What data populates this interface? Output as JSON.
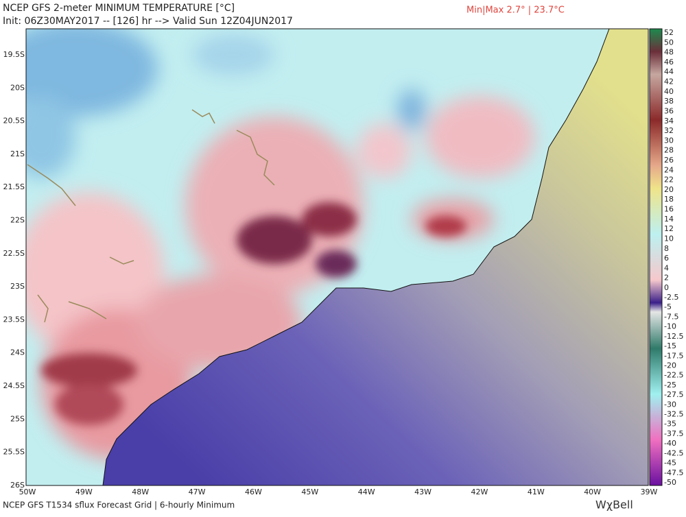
{
  "header": {
    "title": "NCEP GFS 2-meter MINIMUM TEMPERATURE [°C]",
    "init": "Init: 06Z30MAY2017 -- [126] hr --> Valid Sun 12Z04JUN2017",
    "minmax": "Min|Max 2.7° | 23.7°C"
  },
  "map": {
    "lat_labels": [
      "19.5S",
      "20S",
      "20.5S",
      "21S",
      "21.5S",
      "22S",
      "22.5S",
      "23S",
      "23.5S",
      "24S",
      "24.5S",
      "25S",
      "25.5S",
      "26S"
    ],
    "lon_labels": [
      "50W",
      "49W",
      "48W",
      "47W",
      "46W",
      "45W",
      "44W",
      "43W",
      "42W",
      "41W",
      "40W",
      "39W"
    ]
  },
  "colorbar": {
    "upper_labels": [
      52,
      50,
      48,
      46,
      44,
      42,
      40,
      38,
      36,
      34,
      32,
      30,
      28,
      26,
      24,
      22,
      20,
      18,
      16,
      14,
      12,
      10,
      8,
      6,
      4,
      2,
      0
    ],
    "lower_labels": [
      -2.5,
      -5,
      -7.5,
      -10,
      -12.5,
      -15,
      -17.5,
      -20,
      -22.5,
      -25,
      -27.5,
      -30,
      -32.5,
      -35,
      -37.5,
      -40,
      -42.5,
      -45,
      -47.5,
      -50
    ]
  },
  "footer": {
    "source": "NCEP GFS T1534 sflux Forecast Grid | 6-hourly Minimum",
    "logo": "WχBell"
  }
}
